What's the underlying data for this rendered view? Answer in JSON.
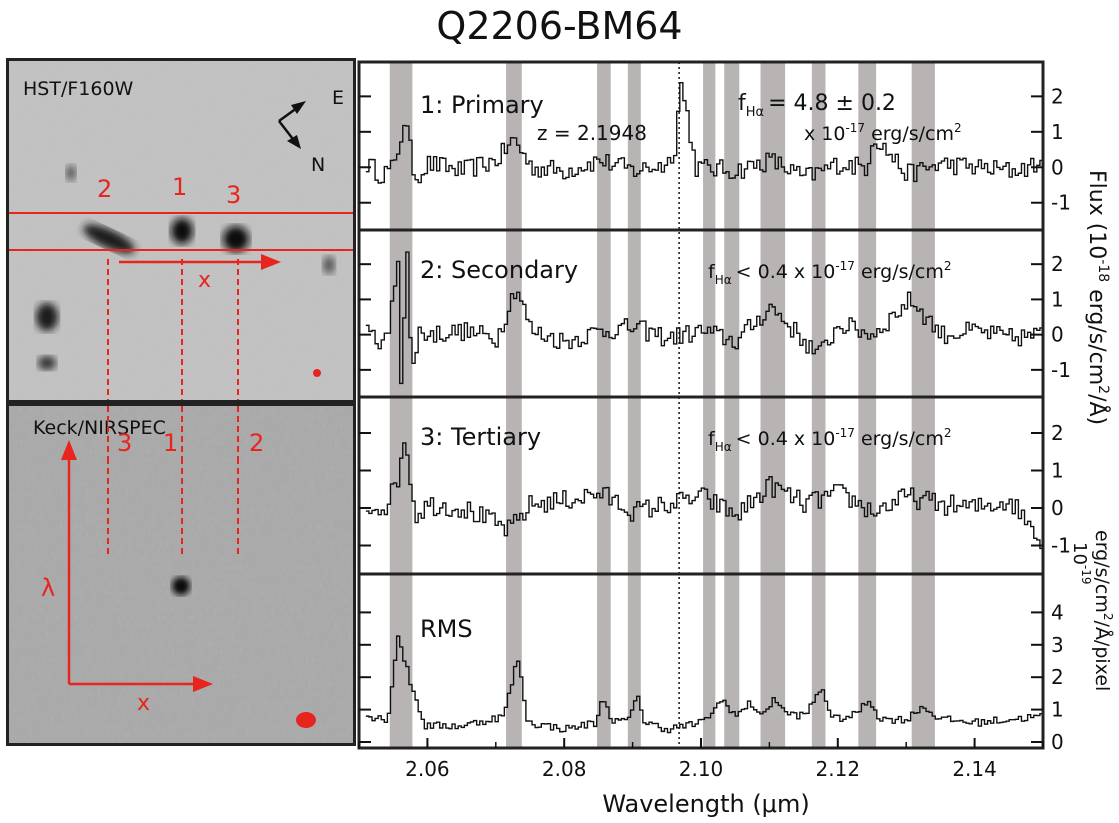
{
  "figure_title": "Q2206-BM64",
  "colors": {
    "line": "#111111",
    "band": "#b9b4b4",
    "red": "#e8241f",
    "frame": "#222222"
  },
  "hst": {
    "label": "HST/F160W",
    "compass_e": "E",
    "compass_n": "N",
    "source_labels": [
      "2",
      "1",
      "3"
    ],
    "axis_label": "x"
  },
  "keck": {
    "label": "Keck/NIRSPEC",
    "source_labels": [
      "3",
      "1",
      "2"
    ],
    "lambda_label": "λ",
    "axis_label": "x"
  },
  "chart_data": [
    {
      "type": "line",
      "panel": "1: Primary",
      "ylim": [
        -1.6,
        2.8
      ],
      "yticks": [
        -1,
        0,
        1,
        2
      ],
      "annotations": {
        "redshift": "z = 2.1948",
        "flux_symbol": "f",
        "flux_sub": "Hα",
        "flux_value": "= 4.8 ± 0.2",
        "flux_units_prefix": "x 10",
        "flux_units_exp": "-17",
        "flux_units_suffix": " erg/s/cm",
        "flux_units_exp2": "2"
      },
      "x": [
        2.051,
        2.053,
        2.055,
        2.0565,
        2.058,
        2.06,
        2.065,
        2.07,
        2.0725,
        2.075,
        2.08,
        2.085,
        2.09,
        2.095,
        2.096,
        2.0968,
        2.0978,
        2.099,
        2.105,
        2.11,
        2.115,
        2.12,
        2.124,
        2.125,
        2.13,
        2.135,
        2.14,
        2.145,
        2.15
      ],
      "y": [
        0.1,
        -0.2,
        0.0,
        1.4,
        -0.3,
        0.1,
        -0.1,
        0.2,
        0.8,
        0.0,
        -0.1,
        0.2,
        -0.1,
        0.1,
        0.6,
        2.4,
        1.5,
        0.0,
        -0.1,
        0.2,
        -0.3,
        0.1,
        0.0,
        0.9,
        -0.2,
        0.1,
        0.0,
        -0.1,
        0.1
      ]
    },
    {
      "type": "line",
      "panel": "2: Secondary",
      "ylim": [
        -1.6,
        2.8
      ],
      "yticks": [
        -1,
        0,
        1,
        2
      ],
      "annotations": {
        "flux_symbol": "f",
        "flux_sub": "Hα",
        "flux_limit_prefix": "< 0.4 x 10",
        "flux_units_exp": "-17",
        "flux_units_suffix": " erg/s/cm",
        "flux_units_exp2": "2"
      },
      "x": [
        2.051,
        2.054,
        2.0555,
        2.056,
        2.0568,
        2.0575,
        2.0585,
        2.06,
        2.065,
        2.07,
        2.0728,
        2.075,
        2.08,
        2.085,
        2.09,
        2.095,
        2.1,
        2.105,
        2.11,
        2.117,
        2.12,
        2.125,
        2.1305,
        2.135,
        2.14,
        2.145,
        2.15
      ],
      "y": [
        0.0,
        -0.2,
        2.2,
        -1.5,
        2.6,
        -1.3,
        0.1,
        0.0,
        0.1,
        -0.1,
        1.4,
        0.1,
        -0.2,
        0.1,
        0.2,
        -0.1,
        0.1,
        -0.2,
        0.8,
        -0.6,
        0.3,
        0.0,
        1.0,
        0.0,
        0.1,
        -0.1,
        0.0
      ]
    },
    {
      "type": "line",
      "panel": "3: Tertiary",
      "ylim": [
        -1.6,
        2.8
      ],
      "yticks": [
        -1,
        0,
        1,
        2
      ],
      "annotations": {
        "flux_symbol": "f",
        "flux_sub": "Hα",
        "flux_limit_prefix": "< 0.4 x 10",
        "flux_units_exp": "-17",
        "flux_units_suffix": " erg/s/cm",
        "flux_units_exp2": "2"
      },
      "x": [
        2.051,
        2.054,
        2.0555,
        2.0565,
        2.058,
        2.06,
        2.065,
        2.0718,
        2.075,
        2.08,
        2.085,
        2.09,
        2.095,
        2.1,
        2.105,
        2.11,
        2.115,
        2.12,
        2.125,
        2.13,
        2.135,
        2.14,
        2.145,
        2.15
      ],
      "y": [
        0.0,
        0.1,
        0.8,
        2.0,
        -0.2,
        0.1,
        0.0,
        -0.6,
        0.1,
        0.2,
        0.4,
        -0.1,
        0.1,
        0.3,
        -0.2,
        0.6,
        0.1,
        0.4,
        -0.1,
        0.3,
        0.1,
        0.0,
        0.2,
        -0.9
      ]
    },
    {
      "type": "line",
      "panel": "RMS",
      "ylim": [
        0,
        5
      ],
      "yticks": [
        0,
        1,
        2,
        3,
        4
      ],
      "annotations": {},
      "x": [
        2.051,
        2.054,
        2.0555,
        2.0575,
        2.0595,
        2.065,
        2.071,
        2.073,
        2.0745,
        2.08,
        2.0845,
        2.0855,
        2.087,
        2.0895,
        2.0905,
        2.0915,
        2.095,
        2.1,
        2.103,
        2.105,
        2.107,
        2.109,
        2.1105,
        2.112,
        2.115,
        2.1175,
        2.119,
        2.122,
        2.1245,
        2.126,
        2.13,
        2.132,
        2.135,
        2.14,
        2.145,
        2.15
      ],
      "y": [
        0.8,
        0.7,
        3.3,
        1.7,
        0.5,
        0.5,
        0.8,
        2.6,
        0.6,
        0.4,
        0.6,
        1.4,
        0.6,
        0.7,
        1.6,
        0.6,
        0.4,
        0.6,
        1.3,
        0.8,
        1.2,
        0.8,
        1.4,
        0.9,
        0.8,
        1.7,
        0.7,
        0.8,
        1.3,
        0.7,
        0.7,
        1.1,
        0.7,
        0.6,
        0.7,
        0.8
      ]
    }
  ],
  "bands": [
    [
      2.0545,
      2.0578
    ],
    [
      2.0715,
      2.0738
    ],
    [
      2.0848,
      2.0868
    ],
    [
      2.0893,
      2.0912
    ],
    [
      2.1003,
      2.1021
    ],
    [
      2.1034,
      2.1056
    ],
    [
      2.1087,
      2.1123
    ],
    [
      2.1162,
      2.1182
    ],
    [
      2.123,
      2.1256
    ],
    [
      2.1308,
      2.1342
    ]
  ],
  "halpha_line": 2.0968,
  "x_axis": {
    "label": "Wavelength (μm)",
    "xlim": [
      2.05,
      2.15
    ],
    "ticks": [
      "2.06",
      "2.08",
      "2.10",
      "2.12",
      "2.14"
    ]
  },
  "right_label_flux": {
    "prefix": "Flux (10",
    "exp": "-18",
    "suffix": " erg/s/cm",
    "exp2": "2",
    "end": "/Å)"
  },
  "right_label_rms": {
    "line1_exp": "10",
    "line1_exp_sup": "-19",
    "line2": "erg/s/cm",
    "line2_exp": "2",
    "line2_end": "/Å/pixel"
  }
}
